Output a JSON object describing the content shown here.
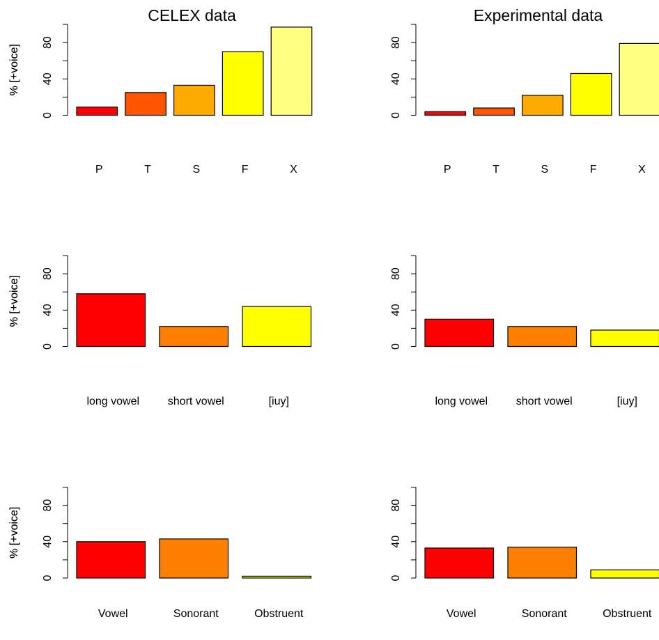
{
  "chart_data": [
    {
      "type": "bar",
      "title": "CELEX data",
      "ylabel": "% [+voice]",
      "ylim": [
        0,
        100
      ],
      "yticks": [
        0,
        40,
        80
      ],
      "categories": [
        "P",
        "T",
        "S",
        "F",
        "X"
      ],
      "values": [
        9,
        25,
        33,
        70,
        97
      ],
      "colors": [
        "#FF0000",
        "#FF5500",
        "#FFAA00",
        "#FFFF00",
        "#FFFF80"
      ]
    },
    {
      "type": "bar",
      "title": "Experimental data",
      "ylabel": "% [+voice]",
      "ylim": [
        0,
        100
      ],
      "yticks": [
        0,
        40,
        80
      ],
      "categories": [
        "P",
        "T",
        "S",
        "F",
        "X"
      ],
      "values": [
        4,
        8,
        22,
        46,
        79
      ],
      "colors": [
        "#FF0000",
        "#FF5500",
        "#FFAA00",
        "#FFFF00",
        "#FFFF80"
      ]
    },
    {
      "type": "bar",
      "title": "",
      "ylabel": "% [+voice]",
      "ylim": [
        0,
        100
      ],
      "yticks": [
        0,
        40,
        80
      ],
      "categories": [
        "long vowel",
        "short vowel",
        "[iuy]"
      ],
      "values": [
        58,
        22,
        44
      ],
      "colors": [
        "#FF0000",
        "#FF8000",
        "#FFFF00"
      ]
    },
    {
      "type": "bar",
      "title": "",
      "ylabel": "% [+voice]",
      "ylim": [
        0,
        100
      ],
      "yticks": [
        0,
        40,
        80
      ],
      "categories": [
        "long vowel",
        "short vowel",
        "[iuy]"
      ],
      "values": [
        30,
        22,
        18
      ],
      "colors": [
        "#FF0000",
        "#FF8000",
        "#FFFF00"
      ]
    },
    {
      "type": "bar",
      "title": "",
      "ylabel": "% [+voice]",
      "ylim": [
        0,
        100
      ],
      "yticks": [
        0,
        40,
        80
      ],
      "categories": [
        "Vowel",
        "Sonorant",
        "Obstruent"
      ],
      "values": [
        40,
        43,
        2
      ],
      "colors": [
        "#FF0000",
        "#FF8000",
        "#FFFF00"
      ]
    },
    {
      "type": "bar",
      "title": "",
      "ylabel": "% [+voice]",
      "ylim": [
        0,
        100
      ],
      "yticks": [
        0,
        40,
        80
      ],
      "categories": [
        "Vowel",
        "Sonorant",
        "Obstruent"
      ],
      "values": [
        33,
        34,
        9
      ],
      "colors": [
        "#FF0000",
        "#FF8000",
        "#FFFF00"
      ]
    }
  ]
}
